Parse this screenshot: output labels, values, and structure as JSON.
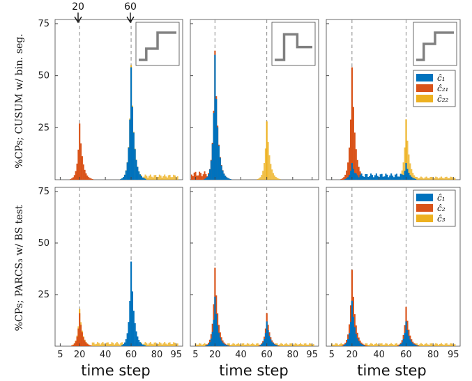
{
  "colors": {
    "c1": "#0072BD",
    "c2": "#D95319",
    "c3": "#EDB120"
  },
  "labels": {
    "xlabel": "time step",
    "ylabel_top": "%CPs; CUSUM w/ bin. seg.",
    "ylabel_bottom": "%CPs; PARCS₃ w/ BS test",
    "arrow_20": "20",
    "arrow_60": "60"
  },
  "legend_top": [
    "ĉ₁",
    "ĉ₂₁",
    "ĉ₂₂"
  ],
  "legend_bottom": [
    "ĉ₁",
    "ĉ₂",
    "ĉ₃"
  ],
  "chart_data": {
    "type": "bar",
    "layout": "2x3 grid of histograms",
    "xlabel": "time step",
    "x_ticks": [
      5,
      20,
      40,
      60,
      80,
      95
    ],
    "xlim": [
      1,
      100
    ],
    "y_ticks": [
      25,
      50,
      75
    ],
    "ylim": [
      0,
      77
    ],
    "true_changepoints": [
      20,
      60
    ],
    "insets": [
      {
        "panel": "top-left",
        "shape": "step up then step up"
      },
      {
        "panel": "top-middle",
        "shape": "step up then step down"
      },
      {
        "panel": "top-right",
        "shape": "step up then step up"
      }
    ],
    "panels": [
      {
        "row": 0,
        "col": 0,
        "series": [
          {
            "name": "ĉ₁",
            "peaks": [
              {
                "x": 60,
                "height": 54
              }
            ]
          },
          {
            "name": "ĉ₂₁",
            "peaks": [
              {
                "x": 20,
                "height": 27
              }
            ]
          },
          {
            "name": "ĉ₂₂",
            "peaks": [
              {
                "x": 60,
                "height": 55
              }
            ],
            "flat": [
              [
                60,
                96,
                2.5
              ]
            ]
          }
        ]
      },
      {
        "row": 0,
        "col": 1,
        "series": [
          {
            "name": "ĉ₁",
            "peaks": [
              {
                "x": 20,
                "height": 60
              }
            ]
          },
          {
            "name": "ĉ₂₁",
            "peaks": [
              {
                "x": 20,
                "height": 62
              }
            ],
            "flat": [
              [
                1,
                20,
                4
              ]
            ]
          },
          {
            "name": "ĉ₂₂",
            "peaks": [
              {
                "x": 60,
                "height": 28
              }
            ]
          }
        ]
      },
      {
        "row": 0,
        "col": 2,
        "series": [
          {
            "name": "ĉ₁",
            "peaks": [
              {
                "x": 20,
                "height": 8
              },
              {
                "x": 60,
                "height": 8
              }
            ],
            "flat": [
              [
                20,
                60,
                3
              ]
            ]
          },
          {
            "name": "ĉ₂₁",
            "peaks": [
              {
                "x": 20,
                "height": 54
              }
            ]
          },
          {
            "name": "ĉ₂₂",
            "peaks": [
              {
                "x": 60,
                "height": 29
              }
            ],
            "flat": [
              [
                60,
                96,
                1.5
              ]
            ]
          }
        ]
      },
      {
        "row": 1,
        "col": 0,
        "series": [
          {
            "name": "ĉ₁",
            "peaks": [
              {
                "x": 60,
                "height": 41
              }
            ]
          },
          {
            "name": "ĉ₂",
            "peaks": [
              {
                "x": 20,
                "height": 16
              }
            ]
          },
          {
            "name": "ĉ₃",
            "peaks": [
              {
                "x": 20,
                "height": 18
              },
              {
                "x": 60,
                "height": 3
              }
            ],
            "flat": [
              [
                30,
                96,
                2
              ]
            ]
          }
        ]
      },
      {
        "row": 1,
        "col": 1,
        "series": [
          {
            "name": "ĉ₁",
            "peaks": [
              {
                "x": 20,
                "height": 24
              },
              {
                "x": 60,
                "height": 12
              }
            ]
          },
          {
            "name": "ĉ₂",
            "peaks": [
              {
                "x": 20,
                "height": 38
              },
              {
                "x": 60,
                "height": 16
              }
            ]
          },
          {
            "name": "ĉ₃",
            "peaks": [
              {
                "x": 20,
                "height": 6
              },
              {
                "x": 60,
                "height": 6
              }
            ],
            "flat": [
              [
                5,
                96,
                1.5
              ]
            ]
          }
        ]
      },
      {
        "row": 1,
        "col": 2,
        "series": [
          {
            "name": "ĉ₁",
            "peaks": [
              {
                "x": 20,
                "height": 22
              },
              {
                "x": 60,
                "height": 12
              }
            ]
          },
          {
            "name": "ĉ₂",
            "peaks": [
              {
                "x": 20,
                "height": 37
              },
              {
                "x": 60,
                "height": 19
              }
            ]
          },
          {
            "name": "ĉ₃",
            "peaks": [
              {
                "x": 20,
                "height": 6
              },
              {
                "x": 60,
                "height": 6
              }
            ],
            "flat": [
              [
                5,
                96,
                1.5
              ]
            ]
          }
        ]
      }
    ]
  }
}
